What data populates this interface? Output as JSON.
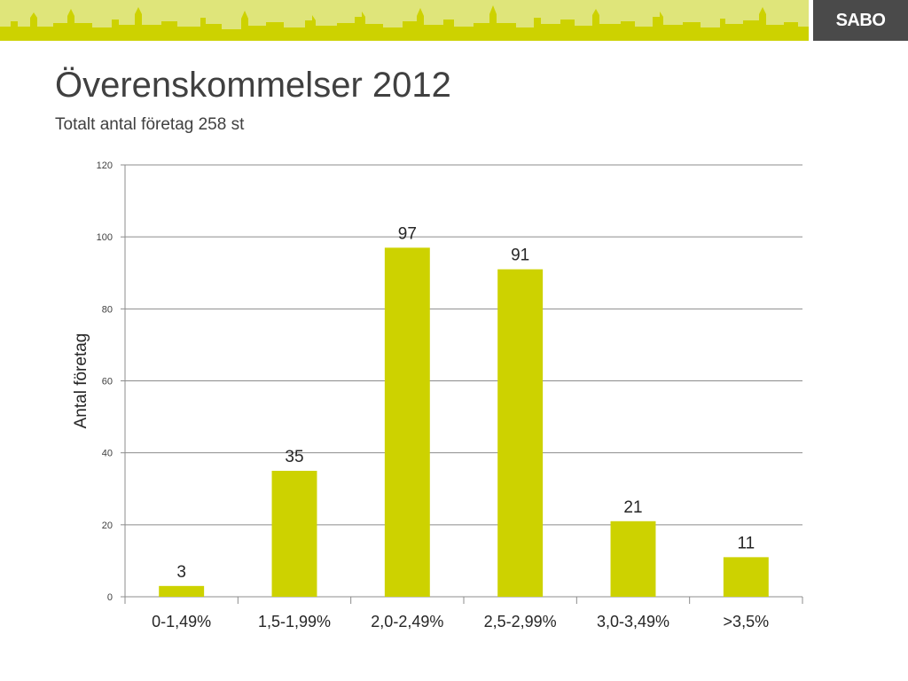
{
  "header": {
    "logo_text": "SABO",
    "banner_color": "#dfe57a",
    "skyline_color": "#cdd200",
    "logo_bg": "#4a4a4a"
  },
  "slide": {
    "title": "Överenskommelser 2012",
    "subtitle": "Totalt antal företag 258 st"
  },
  "chart_data": {
    "type": "bar",
    "categories": [
      "0-1,49%",
      "1,5-1,99%",
      "2,0-2,49%",
      "2,5-2,99%",
      "3,0-3,49%",
      ">3,5%"
    ],
    "values": [
      3,
      35,
      97,
      91,
      21,
      11
    ],
    "data_labels": [
      "3",
      "35",
      "97",
      "91",
      "21",
      "11"
    ],
    "title": "",
    "xlabel": "",
    "ylabel": "Antal företag",
    "ylim": [
      0,
      120
    ],
    "yticks": [
      0,
      20,
      40,
      60,
      80,
      100,
      120
    ],
    "ytick_labels": [
      "0",
      "20",
      "40",
      "60",
      "80",
      "100",
      "120"
    ],
    "grid": true,
    "legend": "none",
    "bar_color": "#cdd200"
  }
}
